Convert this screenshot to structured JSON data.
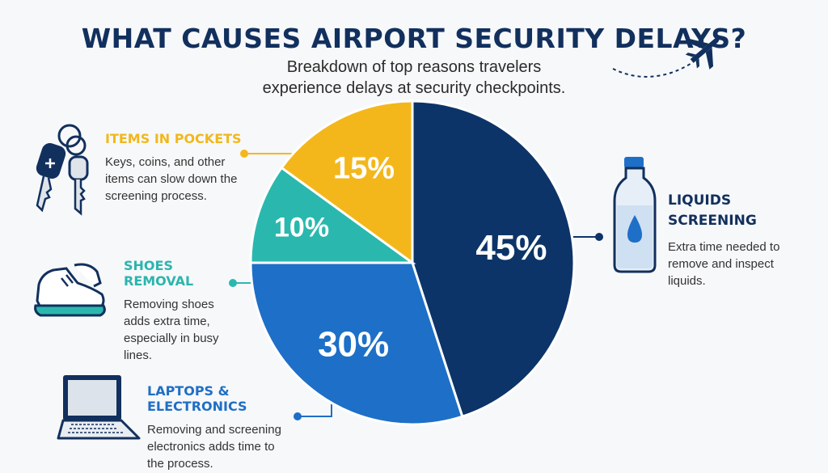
{
  "title": "WHAT CAUSES AIRPORT SECURITY DELAYS?",
  "subtitle": "Breakdown of top reasons travelers experience delays at security checkpoints.",
  "colors": {
    "liquids": "#0d3468",
    "laptops": "#1e6fc7",
    "shoes": "#2ab8ae",
    "pockets": "#f4b71b",
    "title": "#12305d"
  },
  "chart_data": {
    "type": "pie",
    "slices": [
      {
        "label": "LIQUIDS SCREENING",
        "value": 45,
        "display": "45%",
        "color": "#0d3468"
      },
      {
        "label": "LAPTOPS & ELECTRONICS",
        "value": 30,
        "display": "30%",
        "color": "#1e6fc7"
      },
      {
        "label": "SHOES REMOVAL",
        "value": 10,
        "display": "10%",
        "color": "#2ab8ae"
      },
      {
        "label": "ITEMS IN POCKETS",
        "value": 15,
        "display": "15%",
        "color": "#f4b71b"
      }
    ]
  },
  "callouts": {
    "pockets": {
      "heading": "ITEMS IN POCKETS",
      "text": "Keys, coins, and other items can slow down the screening process.",
      "icon": "keys-icon"
    },
    "shoes": {
      "heading": "SHOES REMOVAL",
      "text": "Removing shoes adds extra time, especially in busy lines.",
      "icon": "shoe-icon"
    },
    "laptops": {
      "heading": "LAPTOPS & ELECTRONICS",
      "text": "Removing and screening electronics adds time to the process.",
      "icon": "laptop-icon"
    },
    "liquids": {
      "heading": "LIQUIDS SCREENING",
      "text": "Extra time needed to remove and inspect liquids.",
      "icon": "water-bottle-icon"
    }
  },
  "decor_icons": [
    "airplane-icon"
  ]
}
